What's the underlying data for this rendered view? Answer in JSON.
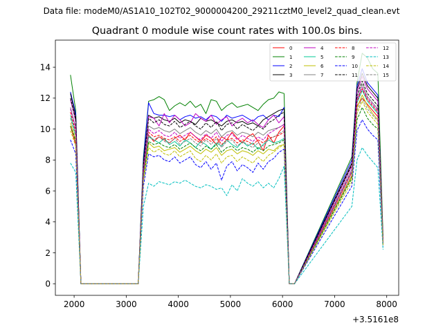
{
  "figure": {
    "suptitle": "Data file: modeM0/AS1A10_102T02_9000004200_29211cztM0_level2_quad_clean.evt",
    "axis_offset_label": "+3.5161e8"
  },
  "chart_data": {
    "type": "line",
    "title": "Quadrant 0 module wise count rates with 100.0s bins.",
    "xlabel": "",
    "ylabel": "",
    "x_offset": 351610000,
    "xlim": [
      1640,
      8230
    ],
    "ylim": [
      -0.75,
      15.75
    ],
    "x_ticks": [
      2000,
      3000,
      4000,
      5000,
      6000,
      7000,
      8000
    ],
    "y_ticks": [
      0,
      2,
      4,
      6,
      8,
      10,
      12,
      14
    ],
    "x_tick_labels": [
      "2000",
      "3000",
      "4000",
      "5000",
      "6000",
      "7000",
      "8000"
    ],
    "y_tick_labels": [
      "0",
      "2",
      "4",
      "6",
      "8",
      "10",
      "12",
      "14"
    ],
    "grid": false,
    "legend_position": "top-right",
    "legend_columns": 4,
    "x": [
      1930,
      2030,
      2130,
      3230,
      3330,
      3430,
      3530,
      3630,
      3730,
      3830,
      3930,
      4030,
      4130,
      4230,
      4330,
      4430,
      4530,
      4630,
      4730,
      4830,
      4930,
      5030,
      5130,
      5230,
      5330,
      5430,
      5530,
      5630,
      5730,
      5830,
      5930,
      6030,
      6130,
      6230,
      7330,
      7430,
      7530,
      7630,
      7730,
      7830,
      7930
    ],
    "segments": [
      [
        0,
        2
      ],
      [
        2,
        3
      ],
      [
        3,
        33
      ],
      [
        33,
        34
      ],
      [
        34,
        40
      ]
    ],
    "series": [
      {
        "name": "0",
        "color": "#ff0000",
        "dash": "solid",
        "values": [
          10.2,
          9.0,
          0,
          0,
          7.0,
          9.6,
          9.2,
          9.5,
          9.3,
          9.1,
          9.4,
          9.6,
          9.3,
          9.8,
          9.5,
          9.2,
          9.6,
          9.4,
          9.0,
          9.5,
          9.3,
          9.8,
          9.4,
          9.1,
          9.5,
          9.7,
          9.2,
          8.6,
          9.6,
          9.1,
          9.8,
          10.2,
          0,
          0,
          7.0,
          11.5,
          12.0,
          11.6,
          11.2,
          10.8,
          2.9
        ]
      },
      {
        "name": "1",
        "color": "#008000",
        "dash": "solid",
        "values": [
          13.5,
          11.2,
          0,
          0,
          8.2,
          11.8,
          11.9,
          12.1,
          11.9,
          11.2,
          11.5,
          11.7,
          11.5,
          11.8,
          11.4,
          11.6,
          11.0,
          11.9,
          11.8,
          11.2,
          11.5,
          11.7,
          11.4,
          11.5,
          11.6,
          11.4,
          11.2,
          11.6,
          11.9,
          12.0,
          12.4,
          12.3,
          0,
          0,
          8.2,
          13.0,
          14.9,
          14.6,
          13.9,
          13.6,
          3.1
        ]
      },
      {
        "name": "2",
        "color": "#0000ff",
        "dash": "solid",
        "values": [
          12.4,
          11.0,
          0,
          0,
          8.0,
          11.7,
          11.0,
          10.9,
          10.9,
          10.8,
          10.9,
          10.6,
          10.8,
          10.9,
          10.7,
          10.8,
          10.6,
          10.9,
          10.8,
          10.5,
          10.9,
          10.7,
          10.8,
          10.9,
          10.7,
          10.5,
          10.8,
          10.9,
          10.6,
          10.9,
          10.8,
          11.4,
          0,
          0,
          8.0,
          12.8,
          13.9,
          13.0,
          12.6,
          12.2,
          2.7
        ]
      },
      {
        "name": "3",
        "color": "#000000",
        "dash": "solid",
        "values": [
          12.3,
          10.8,
          0,
          0,
          7.8,
          10.9,
          10.7,
          10.8,
          10.6,
          10.5,
          10.7,
          10.4,
          10.6,
          10.5,
          10.3,
          10.7,
          10.5,
          10.6,
          10.4,
          10.2,
          10.5,
          10.6,
          10.4,
          10.5,
          10.3,
          10.4,
          10.2,
          10.6,
          10.8,
          11.0,
          11.2,
          11.3,
          0,
          0,
          7.8,
          12.6,
          13.6,
          12.8,
          12.4,
          12.0,
          2.6
        ]
      },
      {
        "name": "4",
        "color": "#bf00bf",
        "dash": "solid",
        "values": [
          11.9,
          10.5,
          0,
          0,
          7.6,
          10.8,
          10.7,
          10.2,
          11.0,
          10.4,
          10.9,
          10.6,
          10.2,
          10.4,
          11.0,
          10.7,
          10.5,
          10.9,
          10.3,
          10.6,
          10.8,
          10.2,
          10.5,
          10.7,
          10.4,
          10.6,
          10.3,
          10.1,
          10.6,
          10.9,
          10.4,
          10.8,
          0,
          0,
          7.6,
          12.4,
          13.4,
          12.6,
          12.2,
          11.8,
          2.8
        ]
      },
      {
        "name": "5",
        "color": "#00c896",
        "dash": "solid",
        "values": [
          10.9,
          9.6,
          0,
          0,
          7.2,
          9.5,
          9.3,
          9.1,
          9.4,
          9.0,
          9.2,
          8.9,
          9.3,
          9.1,
          8.8,
          9.2,
          9.0,
          8.7,
          9.1,
          8.9,
          9.3,
          9.0,
          8.8,
          9.2,
          8.9,
          9.1,
          8.7,
          9.0,
          9.3,
          9.1,
          9.2,
          9.4,
          0,
          0,
          7.2,
          11.7,
          12.5,
          11.8,
          11.4,
          11.0,
          2.6
        ]
      },
      {
        "name": "6",
        "color": "#bfbf00",
        "dash": "solid",
        "values": [
          10.4,
          9.3,
          0,
          0,
          6.9,
          9.1,
          8.8,
          8.9,
          8.6,
          8.7,
          8.8,
          8.5,
          8.7,
          8.9,
          8.6,
          8.4,
          8.7,
          8.5,
          8.8,
          8.3,
          8.6,
          8.7,
          8.4,
          8.6,
          8.5,
          8.3,
          8.6,
          8.4,
          8.7,
          8.6,
          8.9,
          9.0,
          0,
          0,
          6.9,
          11.4,
          12.2,
          11.5,
          11.0,
          10.6,
          2.6
        ]
      },
      {
        "name": "7",
        "color": "#808080",
        "dash": "solid",
        "values": [
          11.4,
          10.1,
          0,
          0,
          7.4,
          10.2,
          10.0,
          10.1,
          9.9,
          9.8,
          10.0,
          9.7,
          9.9,
          10.1,
          9.8,
          9.6,
          9.9,
          9.7,
          10.0,
          9.5,
          9.8,
          9.9,
          9.6,
          9.8,
          9.7,
          9.5,
          9.8,
          9.6,
          9.9,
          10.0,
          10.1,
          10.3,
          0,
          0,
          7.4,
          12.0,
          12.9,
          12.1,
          11.7,
          11.3,
          2.7
        ]
      },
      {
        "name": "8",
        "color": "#ff0000",
        "dash": "dashed",
        "values": [
          11.1,
          9.8,
          0,
          0,
          7.2,
          9.8,
          9.5,
          9.6,
          9.4,
          9.3,
          9.5,
          9.2,
          9.4,
          9.6,
          9.3,
          9.1,
          9.4,
          9.2,
          9.5,
          9.0,
          9.3,
          9.4,
          9.1,
          9.3,
          9.2,
          9.0,
          9.3,
          9.1,
          9.4,
          9.5,
          9.6,
          9.8,
          0,
          0,
          7.2,
          11.8,
          12.6,
          11.9,
          11.5,
          11.1,
          2.7
        ]
      },
      {
        "name": "9",
        "color": "#008000",
        "dash": "dashed",
        "values": [
          10.2,
          9.2,
          0,
          0,
          6.8,
          9.2,
          9.0,
          9.1,
          8.9,
          8.8,
          9.0,
          8.7,
          8.9,
          9.1,
          8.8,
          8.6,
          8.9,
          8.7,
          9.0,
          8.5,
          8.8,
          8.9,
          8.6,
          8.8,
          8.7,
          8.5,
          8.8,
          8.6,
          8.9,
          9.0,
          9.1,
          9.3,
          0,
          0,
          6.8,
          10.6,
          11.4,
          10.7,
          10.3,
          10.0,
          2.5
        ]
      },
      {
        "name": "10",
        "color": "#0000ff",
        "dash": "dashed",
        "values": [
          9.3,
          8.4,
          0,
          0,
          6.3,
          8.4,
          8.2,
          8.3,
          8.0,
          7.9,
          8.2,
          7.8,
          8.0,
          8.2,
          7.7,
          7.5,
          7.9,
          7.4,
          7.8,
          6.7,
          7.6,
          7.9,
          7.3,
          7.7,
          7.5,
          7.2,
          7.8,
          7.4,
          7.9,
          8.1,
          8.5,
          8.7,
          0,
          0,
          6.3,
          9.9,
          10.6,
          10.0,
          9.6,
          9.3,
          2.4
        ]
      },
      {
        "name": "11",
        "color": "#000000",
        "dash": "dashed",
        "values": [
          12.0,
          10.6,
          0,
          0,
          7.7,
          10.7,
          10.4,
          10.6,
          10.3,
          10.2,
          10.5,
          10.1,
          10.3,
          10.5,
          10.2,
          10.0,
          10.4,
          10.1,
          10.5,
          9.9,
          10.3,
          10.4,
          10.0,
          10.3,
          10.1,
          9.9,
          10.2,
          10.0,
          10.4,
          10.6,
          10.9,
          11.1,
          0,
          0,
          7.7,
          12.2,
          13.1,
          12.3,
          11.9,
          11.5,
          2.6
        ]
      },
      {
        "name": "12",
        "color": "#bf00bf",
        "dash": "dashed",
        "values": [
          11.3,
          10.0,
          0,
          0,
          7.3,
          10.0,
          9.7,
          9.9,
          9.6,
          9.5,
          9.8,
          9.4,
          9.6,
          9.8,
          9.5,
          9.3,
          9.7,
          9.4,
          9.8,
          9.2,
          9.6,
          9.7,
          9.3,
          9.6,
          9.4,
          9.2,
          9.5,
          9.3,
          9.7,
          9.9,
          10.1,
          10.3,
          0,
          0,
          7.3,
          11.9,
          12.7,
          12.0,
          11.6,
          11.2,
          2.7
        ]
      },
      {
        "name": "13",
        "color": "#00bfbf",
        "dash": "dashed",
        "values": [
          7.8,
          7.2,
          0,
          0,
          5.0,
          6.5,
          6.3,
          6.6,
          6.5,
          6.4,
          6.6,
          6.5,
          6.7,
          6.5,
          6.3,
          6.2,
          6.4,
          6.3,
          6.1,
          6.2,
          5.7,
          6.4,
          6.0,
          6.8,
          6.5,
          6.3,
          6.6,
          6.2,
          6.5,
          6.2,
          6.8,
          7.6,
          0,
          0,
          5.0,
          8.0,
          8.8,
          8.3,
          7.9,
          7.5,
          2.2
        ]
      },
      {
        "name": "14",
        "color": "#bfbf00",
        "dash": "dashed",
        "values": [
          9.9,
          8.9,
          0,
          0,
          6.6,
          8.8,
          8.5,
          8.7,
          8.4,
          8.3,
          8.6,
          8.2,
          8.4,
          8.6,
          8.1,
          7.9,
          8.3,
          8.0,
          8.4,
          7.8,
          8.2,
          8.3,
          7.9,
          8.2,
          8.0,
          7.8,
          8.2,
          7.9,
          8.3,
          8.5,
          8.8,
          9.0,
          0,
          0,
          6.6,
          11.0,
          11.8,
          11.1,
          10.7,
          10.3,
          2.5
        ]
      },
      {
        "name": "15",
        "color": "#808080",
        "dash": "dashed",
        "values": [
          10.7,
          9.5,
          0,
          0,
          7.0,
          9.6,
          9.3,
          9.5,
          9.2,
          9.1,
          9.4,
          9.0,
          9.2,
          9.4,
          9.1,
          8.9,
          9.3,
          9.0,
          9.4,
          8.8,
          9.2,
          9.3,
          8.9,
          9.2,
          9.0,
          8.8,
          9.1,
          8.9,
          9.3,
          9.5,
          9.7,
          9.9,
          0,
          0,
          7.0,
          11.2,
          12.0,
          11.3,
          10.9,
          10.5,
          2.6
        ]
      }
    ]
  }
}
